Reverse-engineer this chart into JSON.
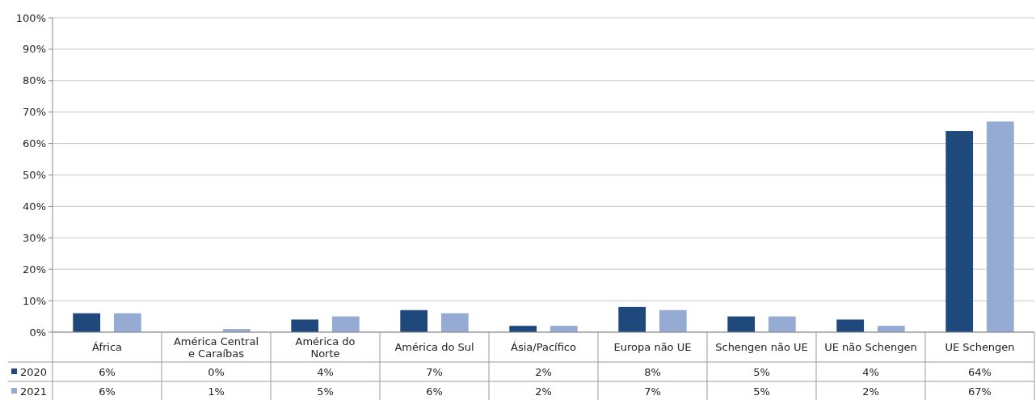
{
  "chart_data": {
    "type": "bar",
    "categories": [
      "África",
      "América Central\ne Caraíbas",
      "América do\nNorte",
      "América do Sul",
      "Ásia/Pacífico",
      "Europa não UE",
      "Schengen não UE",
      "UE não Schengen",
      "UE Schengen"
    ],
    "series": [
      {
        "name": "2020",
        "color": "#1f497d",
        "values": [
          6,
          0,
          4,
          7,
          2,
          8,
          5,
          4,
          64
        ],
        "value_labels": [
          "6%",
          "0%",
          "4%",
          "7%",
          "2%",
          "8%",
          "5%",
          "4%",
          "64%"
        ]
      },
      {
        "name": "2021",
        "color": "#95abd3",
        "values": [
          6,
          1,
          5,
          6,
          2,
          7,
          5,
          2,
          67
        ],
        "value_labels": [
          "6%",
          "1%",
          "5%",
          "6%",
          "2%",
          "7%",
          "5%",
          "2%",
          "67%"
        ]
      }
    ],
    "ylim": [
      0,
      100
    ],
    "yticks": [
      {
        "value": 0,
        "label": "0%"
      },
      {
        "value": 10,
        "label": "10%"
      },
      {
        "value": 20,
        "label": "20%"
      },
      {
        "value": 30,
        "label": "30%"
      },
      {
        "value": 40,
        "label": "40%"
      },
      {
        "value": 50,
        "label": "50%"
      },
      {
        "value": 60,
        "label": "60%"
      },
      {
        "value": 70,
        "label": "70%"
      },
      {
        "value": 80,
        "label": "80%"
      },
      {
        "value": 90,
        "label": "90%"
      },
      {
        "value": 100,
        "label": "100%"
      }
    ],
    "grid": "y",
    "legend": "bottom left"
  }
}
